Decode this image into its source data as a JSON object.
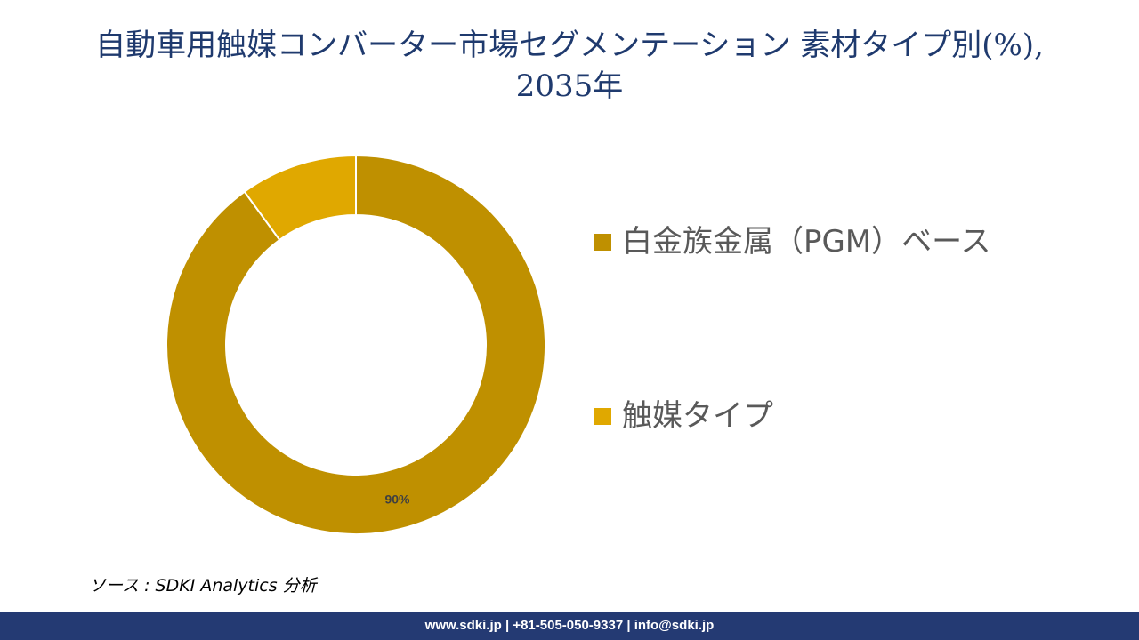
{
  "title": {
    "line1": "自動車用触媒コンバーター市場セグメンテーション 素材タイプ別(%),",
    "line2": "2035年"
  },
  "chart_data": {
    "type": "pie",
    "variant": "donut",
    "start_angle_deg": 0,
    "direction": "clockwise",
    "slices": [
      {
        "label": "白金族金属（PGM）ベース",
        "value": 90,
        "color": "#bf9000",
        "data_label": "90%"
      },
      {
        "label": "触媒タイプ",
        "value": 10,
        "color": "#e0a800",
        "data_label": ""
      }
    ],
    "legend_position": "right"
  },
  "legend": {
    "items": [
      {
        "label": "白金族金属（PGM）ベース",
        "color": "#bf9000"
      },
      {
        "label": "触媒タイプ",
        "color": "#e0a800"
      }
    ]
  },
  "source": "ソース : SDKI Analytics 分析",
  "footer": "www.sdki.jp | +81-505-050-9337 | info@sdki.jp"
}
